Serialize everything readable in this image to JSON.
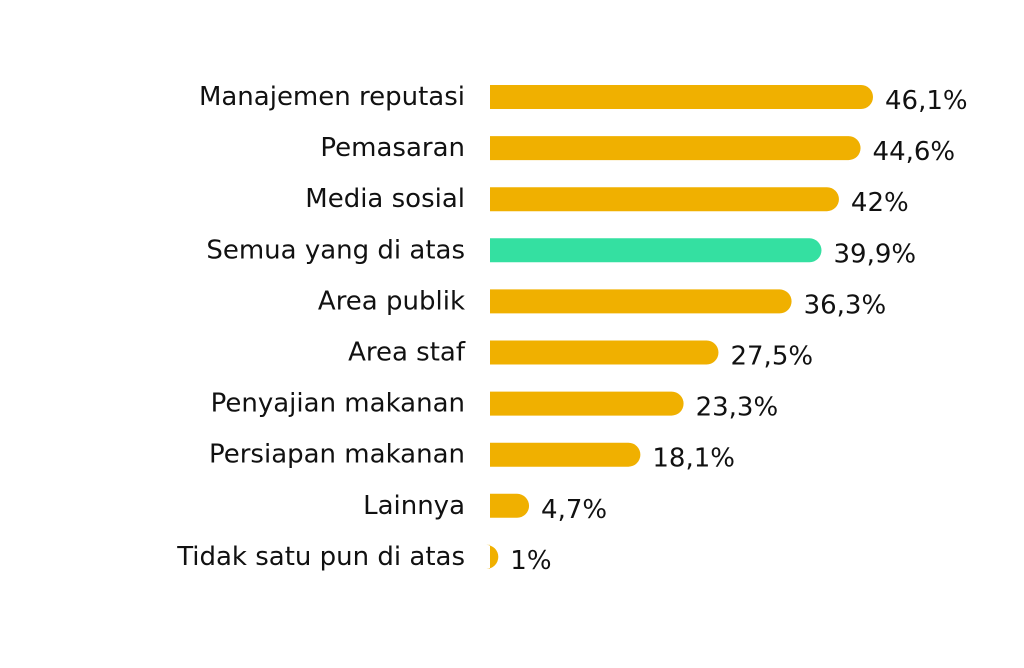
{
  "chart_data": {
    "type": "bar",
    "orientation": "horizontal",
    "categories": [
      "Manajemen reputasi",
      "Pemasaran",
      "Media sosial",
      "Semua yang di atas",
      "Area publik",
      "Area staf",
      "Penyajian makanan",
      "Persiapan makanan",
      "Lainnya",
      "Tidak satu pun di atas"
    ],
    "values": [
      46.1,
      44.6,
      42,
      39.9,
      36.3,
      27.5,
      23.3,
      18.1,
      4.7,
      1
    ],
    "value_labels": [
      "46,1%",
      "44,6%",
      "42%",
      "39,9%",
      "36,3%",
      "27,5%",
      "23,3%",
      "18,1%",
      "4,7%",
      "1%"
    ],
    "colors": {
      "default": "#F0B000",
      "highlight": "#34E0A1"
    },
    "highlight_index": 3,
    "xlim": [
      0,
      46.1
    ],
    "grid": false,
    "title": "",
    "xlabel": "",
    "ylabel": ""
  }
}
